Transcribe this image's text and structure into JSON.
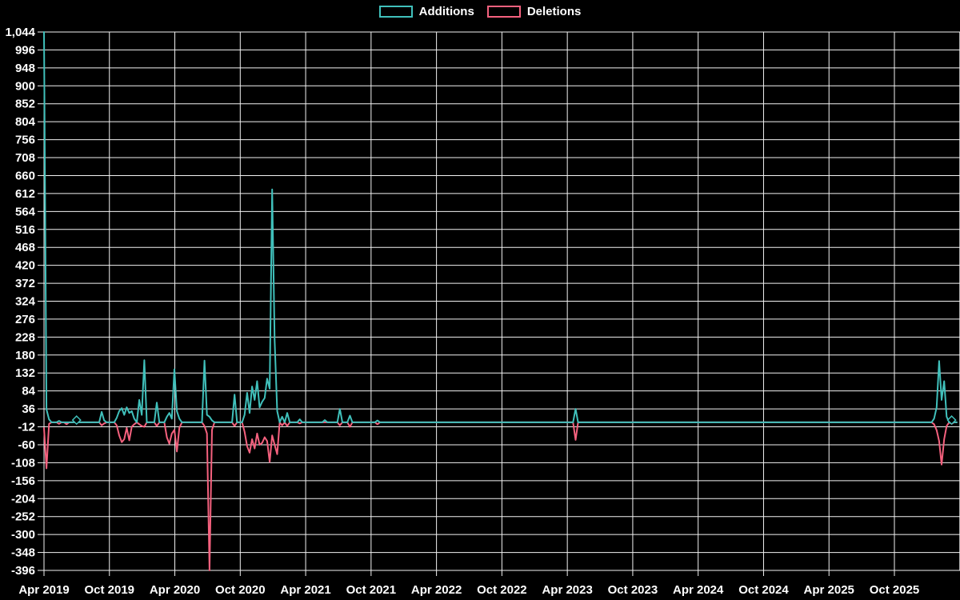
{
  "page": {
    "background_color": "#000000",
    "text_color": "#ffffff",
    "grid_color": "#f2f2f2"
  },
  "legend": {
    "items": [
      {
        "label": "Additions",
        "color": "#40c0bb"
      },
      {
        "label": "Deletions",
        "color": "#f5617e"
      }
    ]
  },
  "chart_data": {
    "type": "line",
    "title": "",
    "legend_position": "top",
    "grid": true,
    "background": "#000000",
    "x_axis": {
      "labels": [
        "Apr 2019",
        "Oct 2019",
        "Apr 2020",
        "Oct 2020",
        "Apr 2021",
        "Oct 2021",
        "Apr 2022",
        "Oct 2022",
        "Apr 2023",
        "Oct 2023",
        "Apr 2024",
        "Oct 2024",
        "Apr 2025",
        "Oct 2025"
      ],
      "unit": "week",
      "weeks_total": 365,
      "weeks_per_label": 26.0893
    },
    "y_axis": {
      "min": -396,
      "max": 1044,
      "step": 48,
      "tick_labels": [
        "1,044",
        "996",
        "948",
        "900",
        "852",
        "804",
        "756",
        "708",
        "660",
        "612",
        "564",
        "516",
        "468",
        "420",
        "372",
        "324",
        "276",
        "228",
        "180",
        "132",
        "84",
        "36",
        "-12",
        "-60",
        "-108",
        "-156",
        "-204",
        "-252",
        "-300",
        "-348",
        "-396"
      ]
    },
    "series": [
      {
        "name": "Additions",
        "color": "#40c0bb",
        "baseline": 0,
        "points": [
          [
            0,
            1044
          ],
          [
            1,
            35
          ],
          [
            2,
            8
          ],
          [
            6,
            4
          ],
          [
            13,
            6
          ],
          [
            23,
            28
          ],
          [
            24,
            5
          ],
          [
            29,
            12
          ],
          [
            30,
            30
          ],
          [
            31,
            38
          ],
          [
            32,
            20
          ],
          [
            33,
            40
          ],
          [
            34,
            25
          ],
          [
            35,
            30
          ],
          [
            36,
            10
          ],
          [
            38,
            60
          ],
          [
            39,
            20
          ],
          [
            40,
            166
          ],
          [
            45,
            53
          ],
          [
            49,
            15
          ],
          [
            50,
            25
          ],
          [
            51,
            10
          ],
          [
            52,
            142
          ],
          [
            53,
            30
          ],
          [
            54,
            10
          ],
          [
            64,
            165
          ],
          [
            65,
            20
          ],
          [
            66,
            15
          ],
          [
            67,
            5
          ],
          [
            76,
            74
          ],
          [
            80,
            20
          ],
          [
            81,
            79
          ],
          [
            82,
            25
          ],
          [
            83,
            96
          ],
          [
            84,
            60
          ],
          [
            85,
            110
          ],
          [
            86,
            40
          ],
          [
            87,
            55
          ],
          [
            88,
            65
          ],
          [
            89,
            117
          ],
          [
            90,
            90
          ],
          [
            91,
            623
          ],
          [
            92,
            219
          ],
          [
            93,
            30
          ],
          [
            95,
            15
          ],
          [
            97,
            25
          ],
          [
            102,
            8
          ],
          [
            112,
            6
          ],
          [
            118,
            36
          ],
          [
            122,
            18
          ],
          [
            133,
            5
          ],
          [
            212,
            36
          ],
          [
            355,
            10
          ],
          [
            356,
            40
          ],
          [
            357,
            164
          ],
          [
            358,
            60
          ],
          [
            359,
            110
          ],
          [
            360,
            15
          ],
          [
            362,
            6
          ]
        ],
        "marker_weeks": [
          13,
          362
        ]
      },
      {
        "name": "Deletions",
        "color": "#f5617e",
        "baseline": 0,
        "points": [
          [
            0,
            -15
          ],
          [
            1,
            -123
          ],
          [
            2,
            -4
          ],
          [
            6,
            -4
          ],
          [
            9,
            -5
          ],
          [
            23,
            -8
          ],
          [
            24,
            -3
          ],
          [
            29,
            -8
          ],
          [
            30,
            -35
          ],
          [
            31,
            -53
          ],
          [
            32,
            -45
          ],
          [
            33,
            -15
          ],
          [
            34,
            -48
          ],
          [
            35,
            -12
          ],
          [
            36,
            -5
          ],
          [
            38,
            -5
          ],
          [
            39,
            -10
          ],
          [
            40,
            -12
          ],
          [
            45,
            -10
          ],
          [
            49,
            -40
          ],
          [
            50,
            -57
          ],
          [
            51,
            -30
          ],
          [
            52,
            -20
          ],
          [
            53,
            -78
          ],
          [
            54,
            -15
          ],
          [
            64,
            -10
          ],
          [
            65,
            -30
          ],
          [
            66,
            -396
          ],
          [
            67,
            -20
          ],
          [
            76,
            -10
          ],
          [
            80,
            -25
          ],
          [
            81,
            -64
          ],
          [
            82,
            -81
          ],
          [
            83,
            -45
          ],
          [
            84,
            -70
          ],
          [
            85,
            -30
          ],
          [
            86,
            -60
          ],
          [
            87,
            -55
          ],
          [
            88,
            -40
          ],
          [
            89,
            -50
          ],
          [
            90,
            -106
          ],
          [
            91,
            -35
          ],
          [
            92,
            -60
          ],
          [
            93,
            -85
          ],
          [
            95,
            -8
          ],
          [
            97,
            -10
          ],
          [
            102,
            -3
          ],
          [
            118,
            -8
          ],
          [
            122,
            -12
          ],
          [
            133,
            -5
          ],
          [
            212,
            -47
          ],
          [
            355,
            -5
          ],
          [
            356,
            -21
          ],
          [
            357,
            -50
          ],
          [
            358,
            -113
          ],
          [
            359,
            -45
          ],
          [
            360,
            -10
          ],
          [
            362,
            -4
          ]
        ],
        "marker_weeks": []
      }
    ]
  }
}
